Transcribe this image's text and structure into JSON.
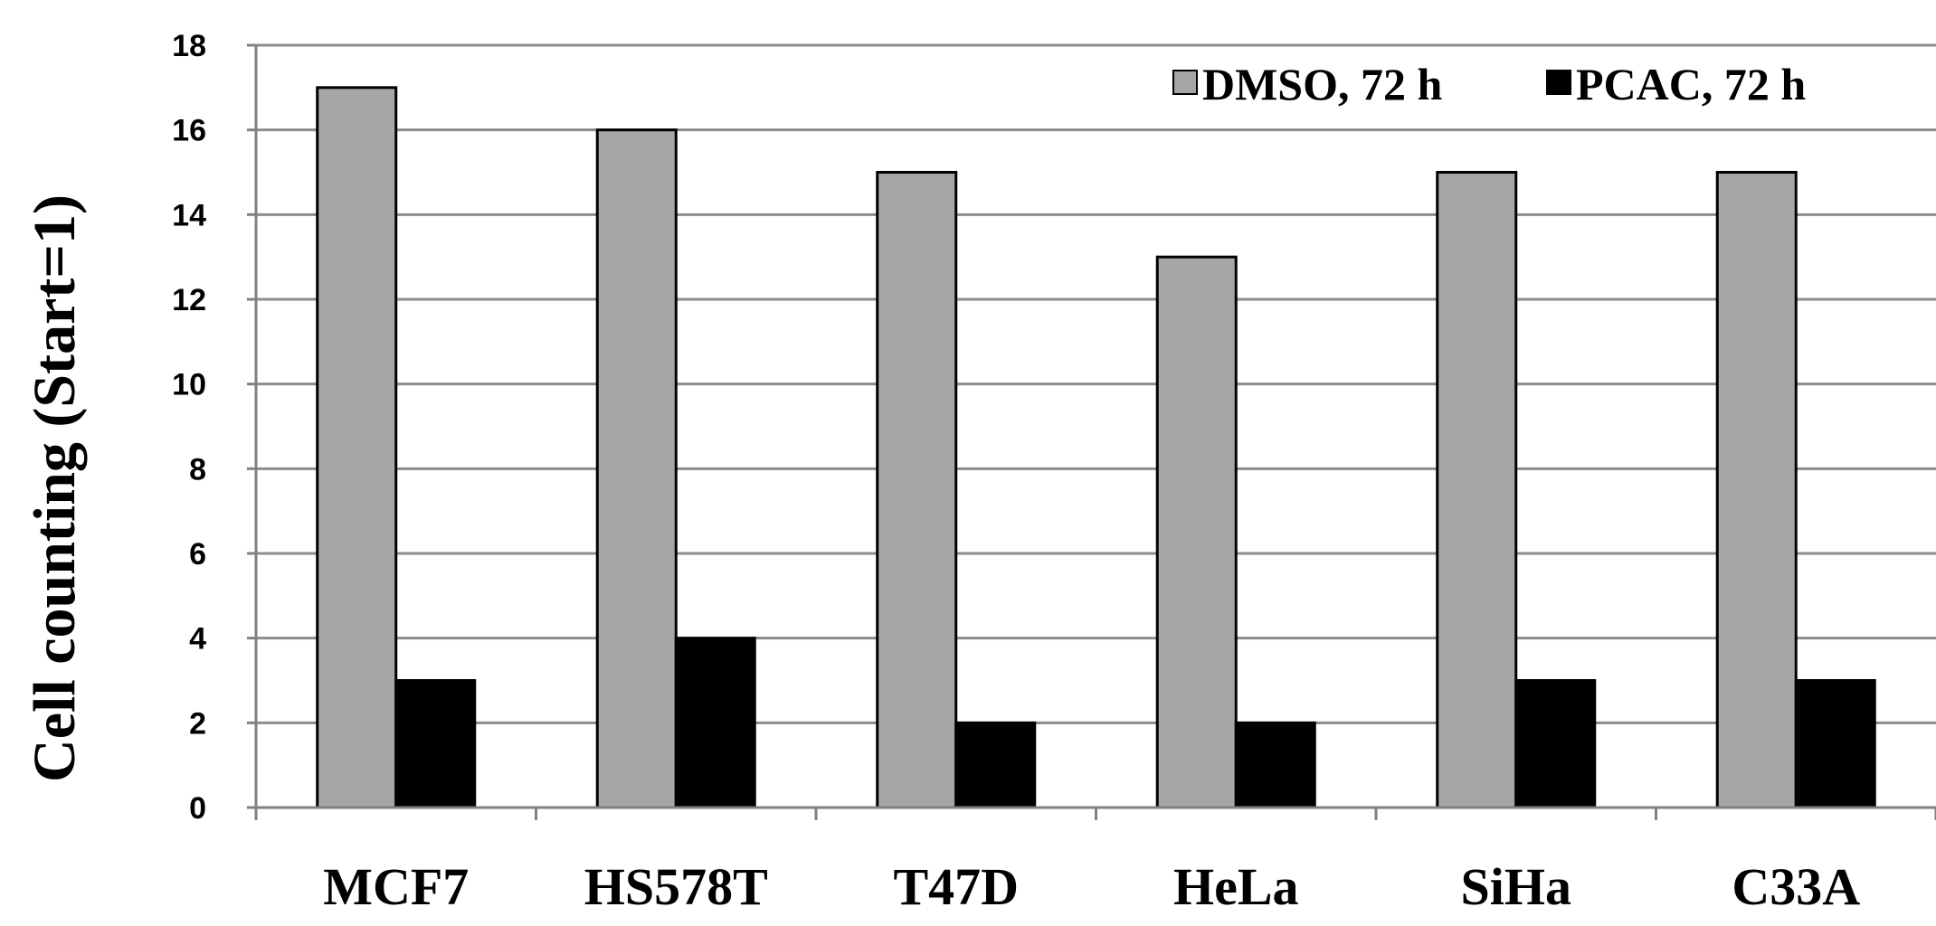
{
  "chart_data": {
    "type": "bar",
    "title": "",
    "xlabel": "",
    "ylabel": "Cell counting (Start=1)",
    "ylim": [
      0,
      18
    ],
    "yticks": [
      0,
      2,
      4,
      6,
      8,
      10,
      12,
      14,
      16,
      18
    ],
    "grid": true,
    "legend_position": "top-right",
    "categories": [
      "MCF7",
      "HS578T",
      "T47D",
      "HeLa",
      "SiHa",
      "C33A"
    ],
    "series": [
      {
        "name": "DMSO, 72 h",
        "color": "#a6a6a6",
        "values": [
          17,
          16,
          15,
          13,
          15,
          15
        ]
      },
      {
        "name": "PCAC, 72 h",
        "color": "#000000",
        "values": [
          3,
          4,
          2,
          2,
          3,
          3
        ]
      }
    ]
  }
}
